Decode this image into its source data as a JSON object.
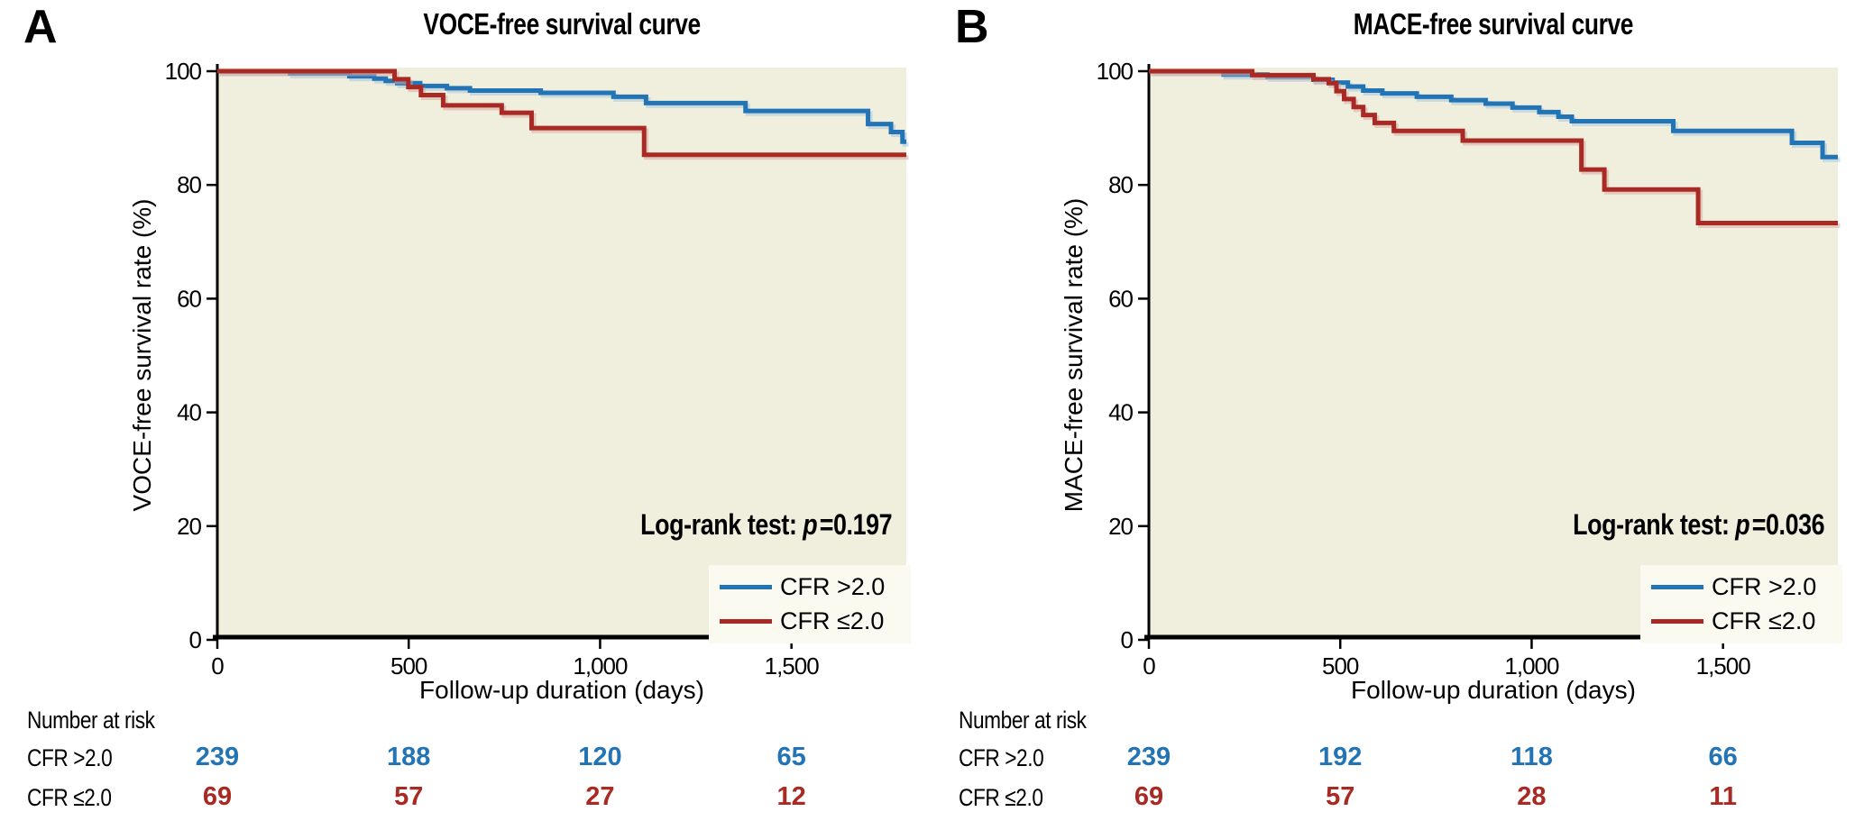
{
  "figure": {
    "background": "#ffffff",
    "colors": {
      "blue": "#2374b5",
      "red": "#a92a24",
      "blue_shadow": "#a5c7e2",
      "red_shadow": "#d9a9a2",
      "plot_bg": "#f0eedc",
      "axis": "#000000",
      "legend_bg": "#fbfaf0",
      "text": "#000000"
    }
  },
  "chart_data": [
    {
      "type": "line",
      "subtype": "kaplan-meier-step",
      "panel_label": "A",
      "title": "VOCE-free survival curve",
      "xlabel": "Follow-up duration (days)",
      "ylabel": "VOCE-free survival rate (%)",
      "xlim": [
        0,
        1800
      ],
      "ylim": [
        0,
        100
      ],
      "x_ticks": [
        0,
        500,
        1000,
        1500
      ],
      "x_tick_labels": [
        "0",
        "500",
        "1,000",
        "1,500"
      ],
      "y_ticks": [
        0,
        20,
        40,
        60,
        80,
        100
      ],
      "grid": false,
      "legend_position": "bottom-right",
      "annotation": {
        "text": "Log-rank test:",
        "p_label": "p",
        "p_value": "=0.197"
      },
      "series": [
        {
          "name": "CFR >2.0",
          "color_key": "blue",
          "points": [
            [
              0,
              100
            ],
            [
              190,
              99.6
            ],
            [
              345,
              99.1
            ],
            [
              410,
              98.7
            ],
            [
              440,
              98.3
            ],
            [
              470,
              97.9
            ],
            [
              530,
              97.4
            ],
            [
              600,
              97.0
            ],
            [
              660,
              96.6
            ],
            [
              845,
              96.2
            ],
            [
              1035,
              95.5
            ],
            [
              1120,
              94.4
            ],
            [
              1380,
              93.0
            ],
            [
              1700,
              90.7
            ],
            [
              1760,
              89.3
            ],
            [
              1790,
              87.6
            ]
          ]
        },
        {
          "name": "CFR ≤2.0",
          "color_key": "red",
          "points": [
            [
              0,
              100
            ],
            [
              463,
              98.6
            ],
            [
              499,
              97.2
            ],
            [
              532,
              95.8
            ],
            [
              590,
              94.0
            ],
            [
              743,
              92.7
            ],
            [
              821,
              90.0
            ],
            [
              1115,
              85.3
            ]
          ]
        }
      ],
      "number_at_risk": {
        "header": "Number at risk",
        "times": [
          0,
          500,
          1000,
          1500
        ],
        "rows": [
          {
            "label": "CFR >2.0",
            "color_key": "blue",
            "values": [
              "239",
              "188",
              "120",
              "65"
            ]
          },
          {
            "label": "CFR ≤2.0",
            "color_key": "red",
            "values": [
              "69",
              "57",
              "27",
              "12"
            ]
          }
        ]
      }
    },
    {
      "type": "line",
      "subtype": "kaplan-meier-step",
      "panel_label": "B",
      "title": "MACE-free survival curve",
      "xlabel": "Follow-up duration (days)",
      "ylabel": "MACE-free survival rate (%)",
      "xlim": [
        0,
        1800
      ],
      "ylim": [
        0,
        100
      ],
      "x_ticks": [
        0,
        500,
        1000,
        1500
      ],
      "x_tick_labels": [
        "0",
        "500",
        "1,000",
        "1,500"
      ],
      "y_ticks": [
        0,
        20,
        40,
        60,
        80,
        100
      ],
      "grid": false,
      "legend_position": "bottom-right",
      "annotation": {
        "text": "Log-rank test:",
        "p_label": "p",
        "p_value": "=0.036"
      },
      "series": [
        {
          "name": "CFR >2.0",
          "color_key": "blue",
          "points": [
            [
              0,
              100
            ],
            [
              195,
              99.4
            ],
            [
              310,
              99.0
            ],
            [
              430,
              98.5
            ],
            [
              480,
              98.0
            ],
            [
              520,
              97.3
            ],
            [
              560,
              96.6
            ],
            [
              610,
              96.1
            ],
            [
              700,
              95.5
            ],
            [
              790,
              94.9
            ],
            [
              880,
              94.3
            ],
            [
              950,
              93.6
            ],
            [
              1020,
              92.8
            ],
            [
              1070,
              92.0
            ],
            [
              1105,
              91.2
            ],
            [
              1370,
              89.5
            ],
            [
              1680,
              87.4
            ],
            [
              1760,
              84.9
            ]
          ]
        },
        {
          "name": "CFR ≤2.0",
          "color_key": "red",
          "points": [
            [
              0,
              100
            ],
            [
              270,
              99.3
            ],
            [
              430,
              98.6
            ],
            [
              470,
              97.9
            ],
            [
              490,
              96.5
            ],
            [
              510,
              95.1
            ],
            [
              535,
              93.7
            ],
            [
              560,
              92.3
            ],
            [
              590,
              90.9
            ],
            [
              640,
              89.5
            ],
            [
              820,
              87.8
            ],
            [
              1130,
              82.7
            ],
            [
              1190,
              79.2
            ],
            [
              1435,
              73.3
            ]
          ]
        }
      ],
      "number_at_risk": {
        "header": "Number at risk",
        "times": [
          0,
          500,
          1000,
          1500
        ],
        "rows": [
          {
            "label": "CFR >2.0",
            "color_key": "blue",
            "values": [
              "239",
              "192",
              "118",
              "66"
            ]
          },
          {
            "label": "CFR ≤2.0",
            "color_key": "red",
            "values": [
              "69",
              "57",
              "28",
              "11"
            ]
          }
        ]
      }
    }
  ]
}
